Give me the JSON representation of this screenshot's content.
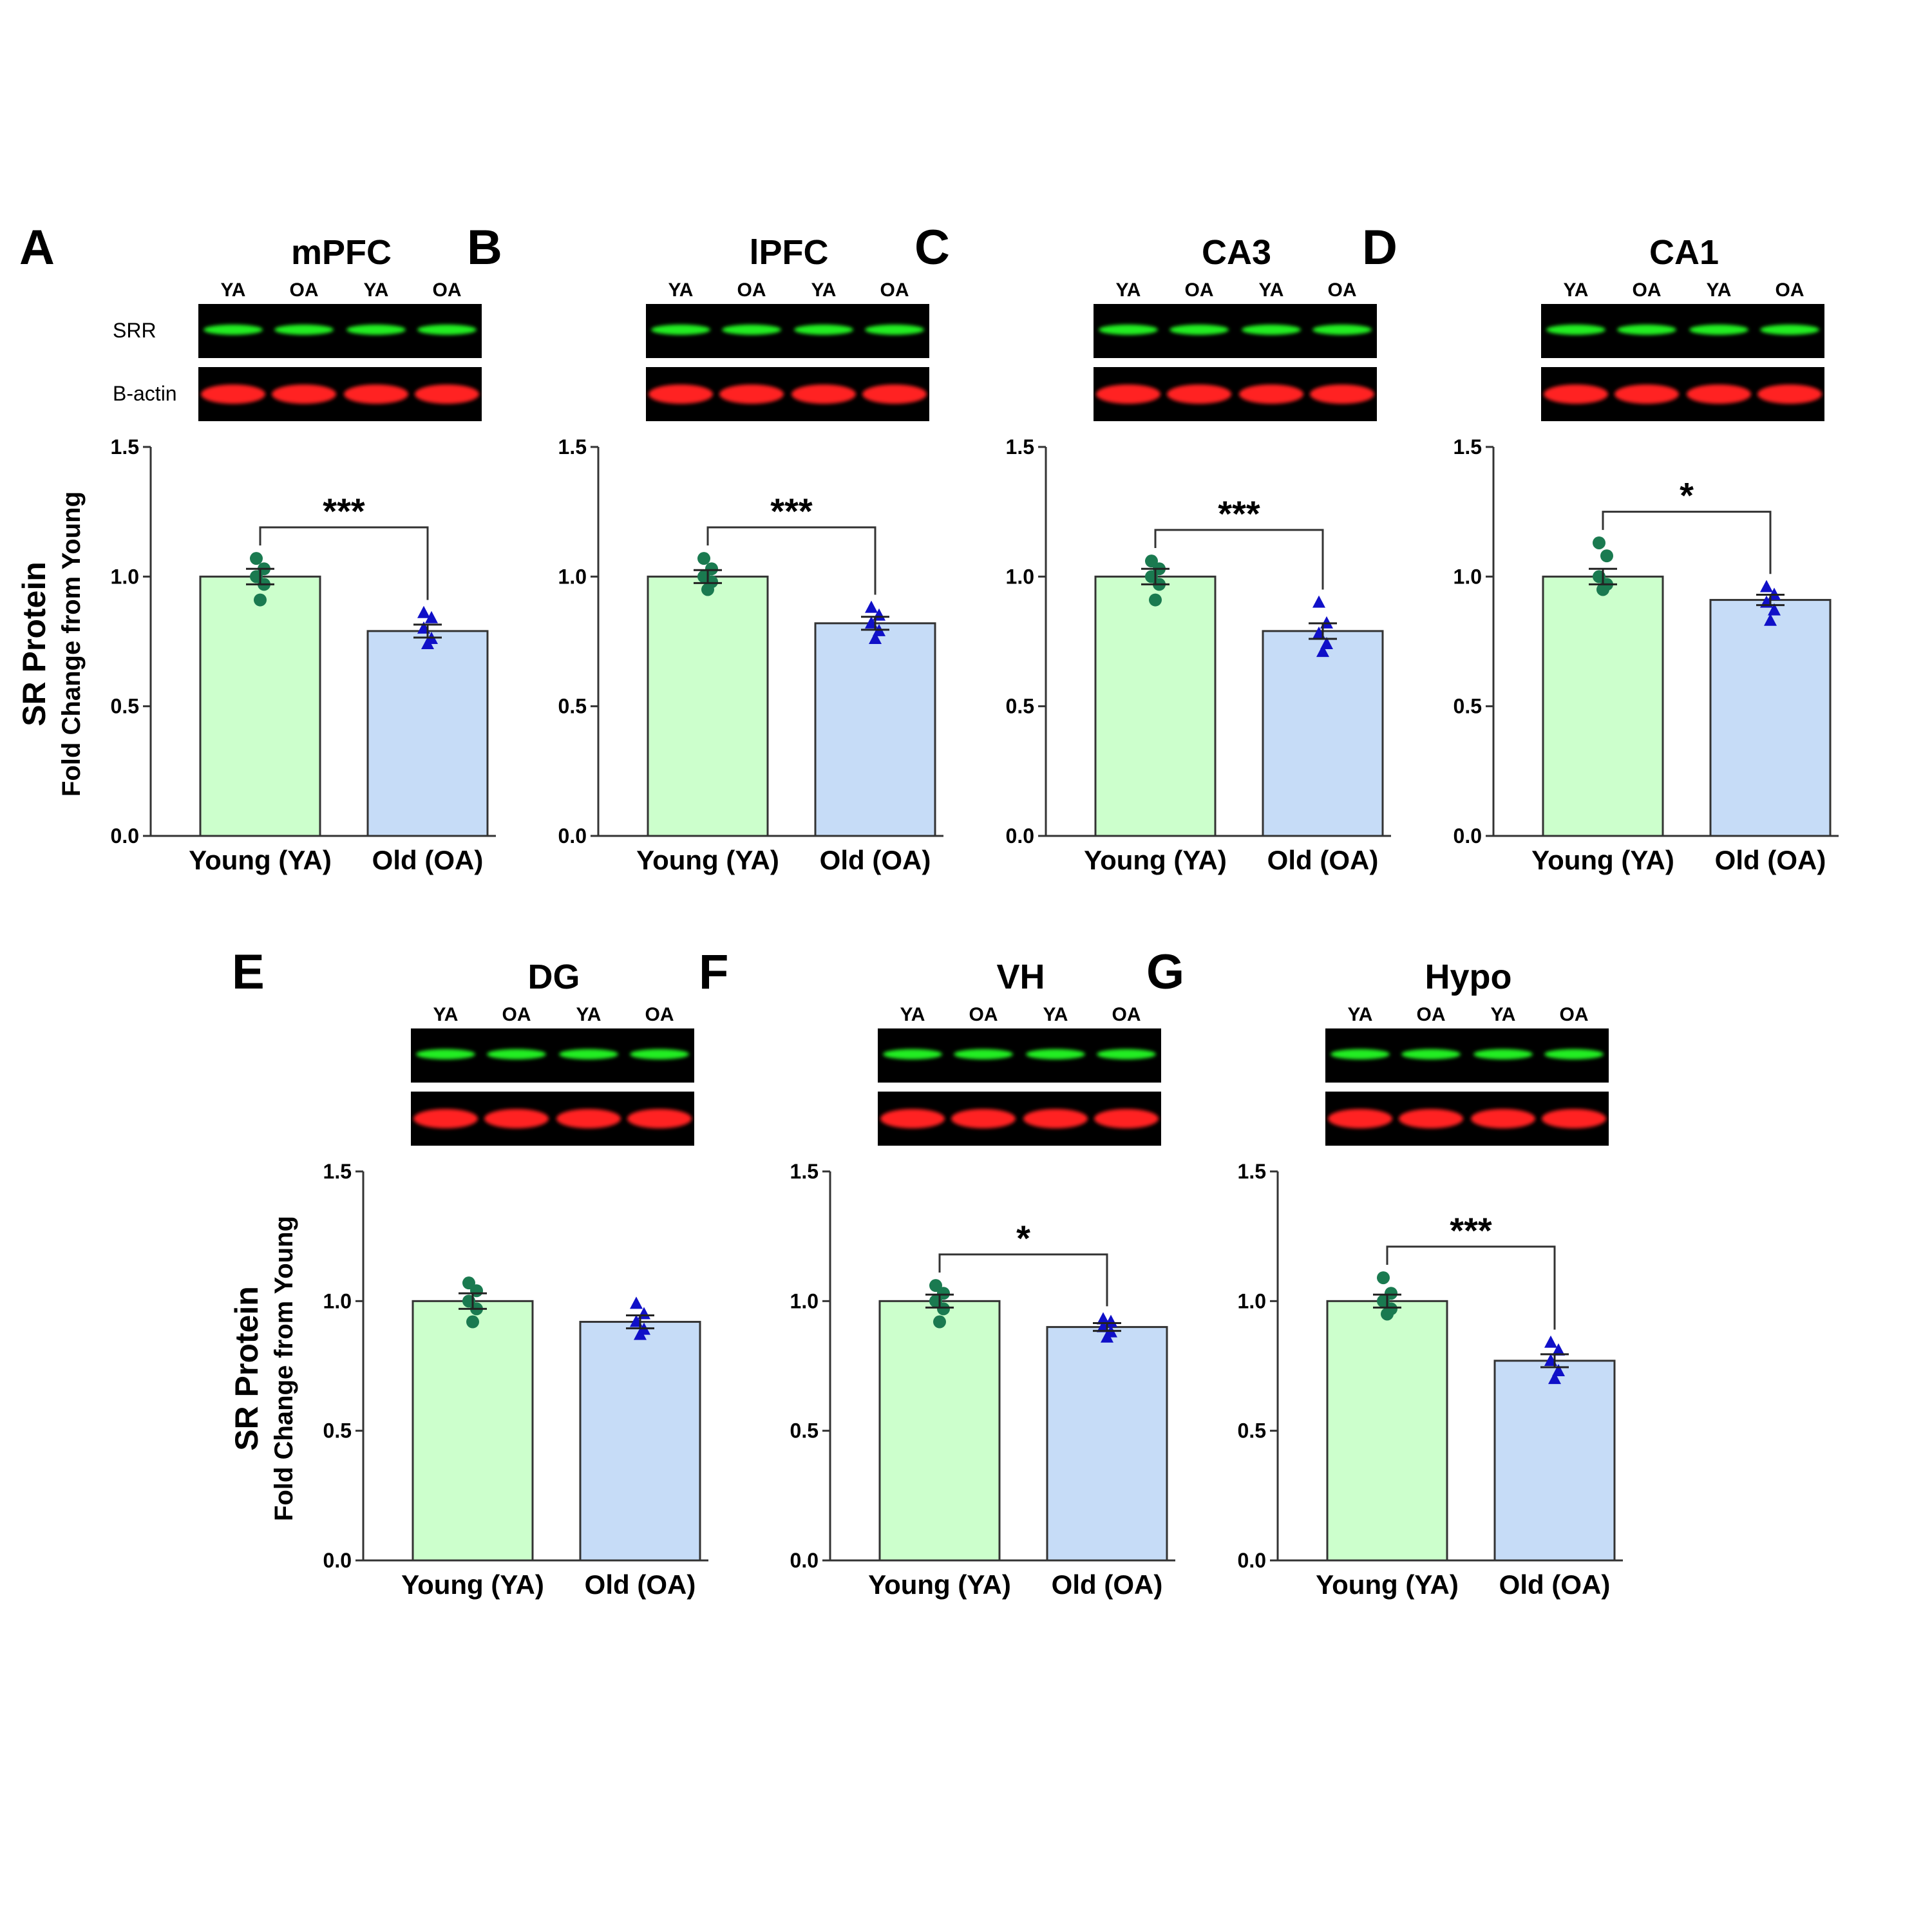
{
  "figure": {
    "y_title_line1": "SR Protein",
    "y_title_line2": "Fold Change from Young",
    "blot_row_labels": [
      "SRR",
      "B-actin"
    ],
    "lane_labels": [
      "YA",
      "OA",
      "YA",
      "OA"
    ]
  },
  "colors": {
    "young_fill": "#ccffcc",
    "old_fill": "#c6dcf7",
    "young_marker": "#1a7a50",
    "old_marker": "#1010c8",
    "srr_band": "#22ee22",
    "actin_band": "#ff2020",
    "blot_bg": "#000000"
  },
  "chart_data": [
    {
      "type": "bar",
      "letter": "A",
      "title": "mPFC",
      "categories": [
        "Young (YA)",
        "Old (OA)"
      ],
      "values": [
        1.0,
        0.79
      ],
      "sem": [
        0.03,
        0.025
      ],
      "ylim": [
        0,
        1.5
      ],
      "yticks": [
        "0.0",
        "0.5",
        "1.0",
        "1.5"
      ],
      "significance": "***",
      "young_points": [
        0.91,
        0.97,
        1.0,
        1.03,
        1.07
      ],
      "old_points": [
        0.74,
        0.76,
        0.8,
        0.84,
        0.86
      ]
    },
    {
      "type": "bar",
      "letter": "B",
      "title": "lPFC",
      "categories": [
        "Young (YA)",
        "Old (OA)"
      ],
      "values": [
        1.0,
        0.82
      ],
      "sem": [
        0.025,
        0.025
      ],
      "ylim": [
        0,
        1.5
      ],
      "yticks": [
        "0.0",
        "0.5",
        "1.0",
        "1.5"
      ],
      "significance": "***",
      "young_points": [
        0.95,
        0.98,
        1.0,
        1.03,
        1.07
      ],
      "old_points": [
        0.76,
        0.79,
        0.82,
        0.85,
        0.88
      ]
    },
    {
      "type": "bar",
      "letter": "C",
      "title": "CA3",
      "categories": [
        "Young (YA)",
        "Old (OA)"
      ],
      "values": [
        1.0,
        0.79
      ],
      "sem": [
        0.03,
        0.03
      ],
      "ylim": [
        0,
        1.5
      ],
      "yticks": [
        "0.0",
        "0.5",
        "1.0",
        "1.5"
      ],
      "significance": "***",
      "young_points": [
        0.91,
        0.97,
        1.0,
        1.03,
        1.06
      ],
      "old_points": [
        0.71,
        0.74,
        0.78,
        0.82,
        0.9
      ]
    },
    {
      "type": "bar",
      "letter": "D",
      "title": "CA1",
      "categories": [
        "Young (YA)",
        "Old (OA)"
      ],
      "values": [
        1.0,
        0.91
      ],
      "sem": [
        0.03,
        0.02
      ],
      "ylim": [
        0,
        1.5
      ],
      "yticks": [
        "0.0",
        "0.5",
        "1.0",
        "1.5"
      ],
      "significance": "*",
      "young_points": [
        0.95,
        0.97,
        1.0,
        1.08,
        1.13
      ],
      "old_points": [
        0.83,
        0.87,
        0.9,
        0.93,
        0.96
      ]
    },
    {
      "type": "bar",
      "letter": "E",
      "title": "DG",
      "categories": [
        "Young (YA)",
        "Old (OA)"
      ],
      "values": [
        1.0,
        0.92
      ],
      "sem": [
        0.03,
        0.025
      ],
      "ylim": [
        0,
        1.5
      ],
      "yticks": [
        "0.0",
        "0.5",
        "1.0",
        "1.5"
      ],
      "significance": "",
      "young_points": [
        0.92,
        0.97,
        1.0,
        1.04,
        1.07
      ],
      "old_points": [
        0.87,
        0.89,
        0.92,
        0.95,
        0.99
      ]
    },
    {
      "type": "bar",
      "letter": "F",
      "title": "VH",
      "categories": [
        "Young (YA)",
        "Old (OA)"
      ],
      "values": [
        1.0,
        0.9
      ],
      "sem": [
        0.025,
        0.015
      ],
      "ylim": [
        0,
        1.5
      ],
      "yticks": [
        "0.0",
        "0.5",
        "1.0",
        "1.5"
      ],
      "significance": "*",
      "young_points": [
        0.92,
        0.97,
        1.0,
        1.03,
        1.06
      ],
      "old_points": [
        0.86,
        0.88,
        0.9,
        0.92,
        0.93
      ]
    },
    {
      "type": "bar",
      "letter": "G",
      "title": "Hypo",
      "categories": [
        "Young (YA)",
        "Old (OA)"
      ],
      "values": [
        1.0,
        0.77
      ],
      "sem": [
        0.025,
        0.025
      ],
      "ylim": [
        0,
        1.5
      ],
      "yticks": [
        "0.0",
        "0.5",
        "1.0",
        "1.5"
      ],
      "significance": "***",
      "young_points": [
        0.95,
        0.97,
        1.0,
        1.03,
        1.09
      ],
      "old_points": [
        0.7,
        0.73,
        0.77,
        0.81,
        0.84
      ]
    }
  ]
}
